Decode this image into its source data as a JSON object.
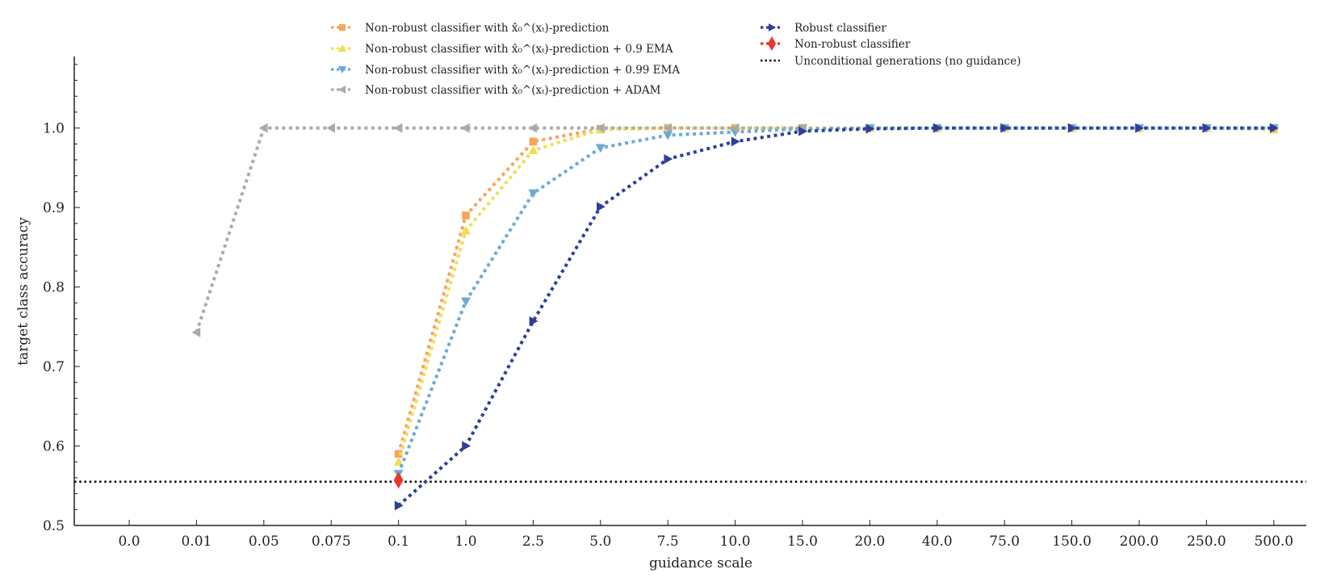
{
  "chart_data": {
    "type": "line",
    "xlabel": "guidance scale",
    "ylabel": "target class accuracy",
    "categories": [
      "0.0",
      "0.01",
      "0.05",
      "0.075",
      "0.1",
      "1.0",
      "2.5",
      "5.0",
      "7.5",
      "10.0",
      "15.0",
      "20.0",
      "40.0",
      "75.0",
      "150.0",
      "200.0",
      "250.0",
      "500.0"
    ],
    "ylim": [
      0.5,
      1.09
    ],
    "yticks": [
      "0.5",
      "0.6",
      "0.7",
      "0.8",
      "0.9",
      "1.0"
    ],
    "grid": false,
    "legend_position": "top",
    "series": [
      {
        "name": "Non-robust classifier with x̂₀^(xₜ)-prediction",
        "legend_html": "Non-robust classifier with <tspan font-weight='bold'>x̂</tspan><tspan baseline-shift='sub' font-size='9'>0</tspan><tspan baseline-shift='super' font-size='9'>(xₜ)</tspan>-prediction",
        "color": "#f5a55a",
        "marker": "square",
        "x": [
          "0.1",
          "1.0",
          "2.5",
          "5.0",
          "7.5",
          "10.0",
          "15.0",
          "20.0",
          "40.0",
          "75.0",
          "150.0",
          "200.0",
          "250.0",
          "500.0"
        ],
        "values": [
          0.59,
          0.89,
          0.983,
          0.999,
          1.0,
          1.0,
          1.0,
          1.0,
          1.0,
          1.0,
          1.0,
          1.0,
          1.0,
          1.0
        ]
      },
      {
        "name": "Non-robust classifier with x̂₀^(xₜ)-prediction + 0.9 EMA",
        "color": "#f2dc54",
        "marker": "triangle-up",
        "x": [
          "0.1",
          "1.0",
          "2.5",
          "5.0",
          "7.5",
          "10.0",
          "15.0",
          "20.0",
          "40.0",
          "75.0",
          "150.0",
          "200.0",
          "250.0",
          "500.0"
        ],
        "values": [
          0.58,
          0.871,
          0.972,
          0.998,
          1.0,
          1.0,
          1.0,
          1.0,
          1.0,
          1.0,
          1.0,
          1.0,
          1.0,
          0.998
        ]
      },
      {
        "name": "Non-robust classifier with x̂₀^(xₜ)-prediction + 0.99 EMA",
        "color": "#6aaad6",
        "marker": "triangle-down",
        "x": [
          "0.1",
          "1.0",
          "2.5",
          "5.0",
          "7.5",
          "10.0",
          "15.0",
          "20.0",
          "40.0",
          "75.0",
          "150.0",
          "200.0",
          "250.0",
          "500.0"
        ],
        "values": [
          0.565,
          0.782,
          0.918,
          0.975,
          0.991,
          0.995,
          0.999,
          1.0,
          1.0,
          1.0,
          1.0,
          1.0,
          1.0,
          1.0
        ]
      },
      {
        "name": "Non-robust classifier with x̂₀^(xₜ)-prediction + ADAM",
        "color": "#aaaaaa",
        "marker": "triangle-left",
        "x": [
          "0.01",
          "0.05",
          "0.075",
          "0.1",
          "1.0",
          "2.5",
          "5.0",
          "7.5",
          "10.0",
          "15.0"
        ],
        "values": [
          0.743,
          1.0,
          1.0,
          1.0,
          1.0,
          1.0,
          1.0,
          1.0,
          1.0,
          1.0
        ]
      },
      {
        "name": "Robust classifier",
        "color": "#2e3f99",
        "marker": "triangle-right",
        "x": [
          "0.1",
          "1.0",
          "2.5",
          "5.0",
          "7.5",
          "10.0",
          "15.0",
          "20.0",
          "40.0",
          "75.0",
          "150.0",
          "200.0",
          "250.0",
          "500.0"
        ],
        "values": [
          0.525,
          0.6,
          0.757,
          0.901,
          0.961,
          0.983,
          0.996,
          0.999,
          1.0,
          1.0,
          1.0,
          1.0,
          1.0,
          1.0
        ]
      },
      {
        "name": "Non-robust classifier",
        "color": "#e8382a",
        "marker": "diamond",
        "x": [
          "0.1"
        ],
        "values": [
          0.557
        ]
      }
    ],
    "reference_lines": [
      {
        "name": "Unconditional generations (no guidance)",
        "color": "#111111",
        "y": 0.555
      }
    ]
  }
}
